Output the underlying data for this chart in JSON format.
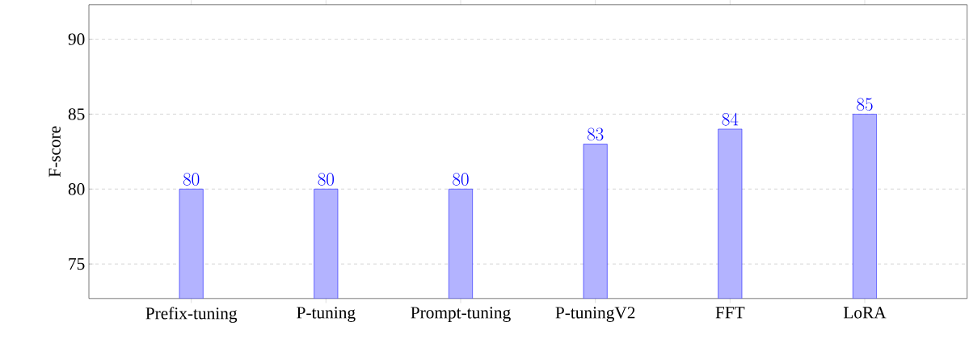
{
  "chart_data": {
    "type": "bar",
    "ylabel": "F-score",
    "categories": [
      "Prefix-tuning",
      "P-tuning",
      "Prompt-tuning",
      "P-tuningV2",
      "FFT",
      "LoRA"
    ],
    "values": [
      80,
      80,
      80,
      83,
      84,
      85
    ],
    "color": "#b3b3ff",
    "ylim": [
      72.7,
      92.3
    ],
    "yticks": [
      75,
      80,
      85,
      90
    ],
    "grid": "y",
    "data_labels": true
  }
}
